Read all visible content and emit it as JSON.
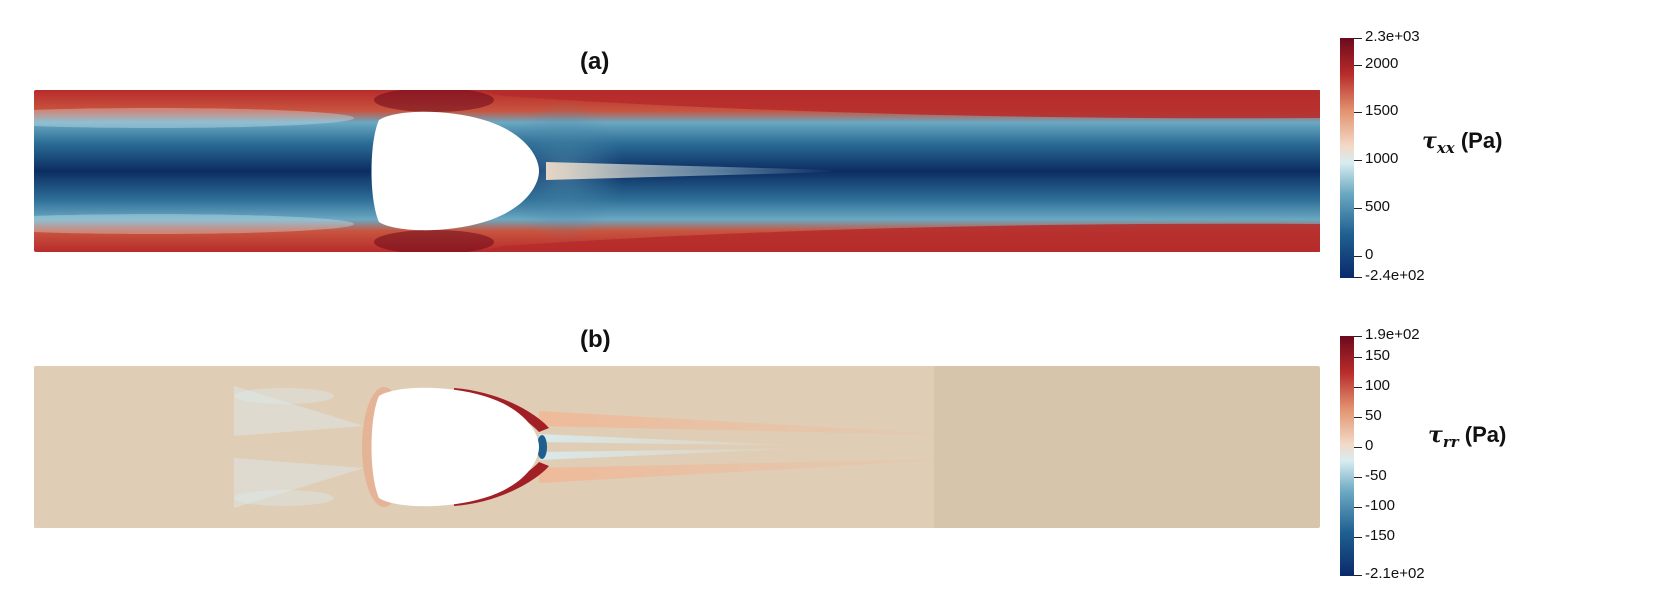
{
  "panels": [
    {
      "label": "(a)",
      "colorbar": {
        "symbol": "τ",
        "subscript": "xx",
        "unit": "(Pa)",
        "max_label": "2.3e+03",
        "min_label": "-2.4e+02",
        "ticks": [
          "2000",
          "1500",
          "1000",
          "500",
          "0"
        ],
        "colormap": [
          "#0a2a6b",
          "#1f5f90",
          "#6aa8c2",
          "#d8ecf0",
          "#f3d9c7",
          "#e1916d",
          "#b82b2b",
          "#6b0a1c"
        ]
      }
    },
    {
      "label": "(b)",
      "colorbar": {
        "symbol": "τ",
        "subscript": "rr",
        "unit": "(Pa)",
        "max_label": "1.9e+02",
        "min_label": "-2.1e+02",
        "ticks": [
          "150",
          "100",
          "50",
          "0",
          "-50",
          "-100",
          "-150"
        ],
        "colormap": [
          "#0a2a6b",
          "#1f5f90",
          "#6aa8c2",
          "#d8ecf0",
          "#f3d9c7",
          "#e1916d",
          "#b82b2b",
          "#6b0a1c"
        ]
      }
    }
  ]
}
